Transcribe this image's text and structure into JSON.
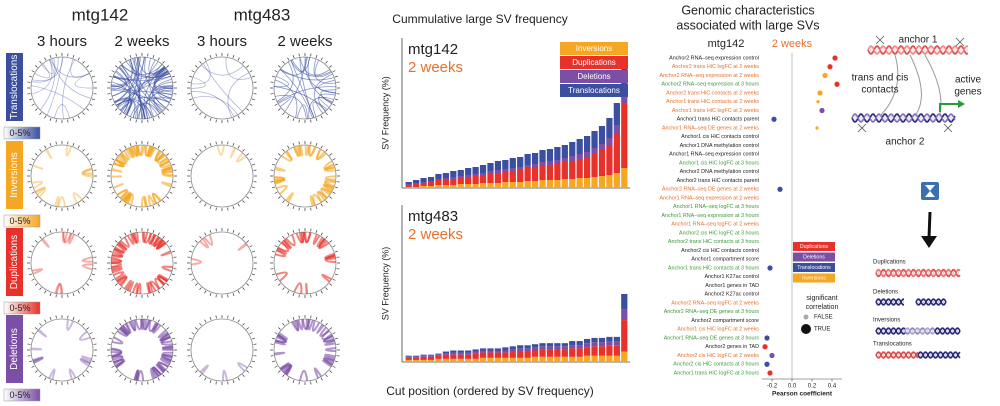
{
  "circos": {
    "samples": [
      "mtg142",
      "mtg483"
    ],
    "times": [
      {
        "label": "3 hours",
        "color": "#3a9a3a"
      },
      {
        "label": "2 weeks",
        "color": "#e8702a"
      },
      {
        "label": "3 hours",
        "color": "#3a9a3a"
      },
      {
        "label": "2 weeks",
        "color": "#e8702a"
      }
    ],
    "rows": [
      {
        "name": "Translocations",
        "color": "#3b4ea0",
        "scale": "0-5%"
      },
      {
        "name": "Inversions",
        "color": "#f5a623",
        "scale": "0-5%"
      },
      {
        "name": "Duplications",
        "color": "#e8312a",
        "scale": "0-5%"
      },
      {
        "name": "Deletions",
        "color": "#7b4fa6",
        "scale": "0-5%"
      }
    ]
  },
  "cumulative": {
    "title": "Cummulative large SV frequency",
    "xlabel": "Cut position (ordered by SV frequency)"
  },
  "chart_data": [
    {
      "type": "bar",
      "stacked": true,
      "sample": "mtg142",
      "time": "2 weeks",
      "time_color": "#e8702a",
      "ylabel": "SV Frequency (%)",
      "ylim": [
        0,
        15
      ],
      "legend": "upper right",
      "series": [
        {
          "name": "Inversions",
          "color": "#f5a623",
          "values": [
            0.1,
            0.1,
            0.2,
            0.2,
            0.3,
            0.3,
            0.3,
            0.4,
            0.4,
            0.4,
            0.5,
            0.5,
            0.5,
            0.6,
            0.6,
            0.6,
            0.7,
            0.7,
            0.8,
            0.8,
            0.8,
            0.9,
            0.9,
            1.0,
            1.0,
            1.1,
            1.2,
            1.3,
            1.5,
            2.0
          ]
        },
        {
          "name": "Duplications",
          "color": "#e8312a",
          "values": [
            0.2,
            0.3,
            0.3,
            0.4,
            0.5,
            0.5,
            0.6,
            0.6,
            0.7,
            0.8,
            0.8,
            0.9,
            1.0,
            1.0,
            1.1,
            1.2,
            1.3,
            1.3,
            1.4,
            1.5,
            1.6,
            1.7,
            1.8,
            1.9,
            2.1,
            2.3,
            2.6,
            3.0,
            4.0,
            6.5
          ]
        },
        {
          "name": "Deletions",
          "color": "#7b4fa6",
          "values": [
            0.1,
            0.1,
            0.1,
            0.1,
            0.1,
            0.2,
            0.2,
            0.2,
            0.2,
            0.2,
            0.2,
            0.3,
            0.3,
            0.3,
            0.3,
            0.3,
            0.3,
            0.4,
            0.4,
            0.4,
            0.4,
            0.4,
            0.5,
            0.5,
            0.5,
            0.6,
            0.6,
            0.7,
            0.8,
            1.5
          ]
        },
        {
          "name": "Translocations",
          "color": "#3b4ea0",
          "values": [
            0.2,
            0.3,
            0.4,
            0.4,
            0.5,
            0.5,
            0.6,
            0.6,
            0.7,
            0.7,
            0.8,
            0.8,
            0.9,
            0.9,
            1.0,
            1.0,
            1.1,
            1.1,
            1.2,
            1.2,
            1.3,
            1.3,
            1.4,
            1.5,
            1.6,
            1.7,
            1.8,
            2.0,
            2.2,
            3.0
          ]
        }
      ]
    },
    {
      "type": "bar",
      "stacked": true,
      "sample": "mtg483",
      "time": "2 weeks",
      "time_color": "#e8702a",
      "ylabel": "SV Frequency (%)",
      "ylim": [
        0,
        15
      ],
      "series": [
        {
          "color": "#f5a623",
          "values": [
            0.2,
            0.2,
            0.2,
            0.2,
            0.3,
            0.3,
            0.3,
            0.3,
            0.3,
            0.3,
            0.4,
            0.4,
            0.4,
            0.4,
            0.4,
            0.4,
            0.4,
            0.5,
            0.5,
            0.5,
            0.5,
            0.5,
            0.5,
            0.5,
            0.6,
            0.6,
            0.6,
            0.6,
            0.6,
            1.0
          ]
        },
        {
          "color": "#e8312a",
          "values": [
            0.2,
            0.2,
            0.3,
            0.3,
            0.3,
            0.4,
            0.4,
            0.4,
            0.4,
            0.5,
            0.5,
            0.5,
            0.5,
            0.5,
            0.6,
            0.6,
            0.6,
            0.6,
            0.7,
            0.7,
            0.7,
            0.7,
            0.8,
            0.8,
            0.8,
            0.9,
            0.9,
            1.0,
            1.0,
            3.0
          ]
        },
        {
          "color": "#7b4fa6",
          "values": [
            0.1,
            0.1,
            0.1,
            0.1,
            0.1,
            0.1,
            0.2,
            0.2,
            0.2,
            0.2,
            0.2,
            0.2,
            0.2,
            0.2,
            0.2,
            0.3,
            0.3,
            0.3,
            0.3,
            0.3,
            0.3,
            0.3,
            0.3,
            0.3,
            0.4,
            0.4,
            0.4,
            0.4,
            0.4,
            1.0
          ]
        },
        {
          "color": "#3b4ea0",
          "values": [
            0.1,
            0.1,
            0.1,
            0.1,
            0.1,
            0.2,
            0.2,
            0.2,
            0.2,
            0.2,
            0.2,
            0.2,
            0.2,
            0.3,
            0.3,
            0.3,
            0.3,
            0.3,
            0.3,
            0.3,
            0.3,
            0.3,
            0.4,
            0.4,
            0.4,
            0.4,
            0.4,
            0.4,
            0.4,
            1.5
          ]
        }
      ]
    },
    {
      "type": "dot",
      "title": [
        "Genomic characteristics",
        "associated with large SVs"
      ],
      "sample": "mtg142",
      "time": "2 weeks",
      "time_color": "#e8702a",
      "xlabel": "Pearson coefficient",
      "xlim": [
        -0.3,
        0.5
      ],
      "xticks": [
        -0.2,
        {
          "value": 0,
          "label": "0.0"
        },
        0.2,
        0.4
      ],
      "legend": [
        {
          "name": "Duplications",
          "color": "#e8312a"
        },
        {
          "name": "Deletions",
          "color": "#7b4fa6"
        },
        {
          "name": "Translocations",
          "color": "#3b4ea0"
        },
        {
          "name": "Inversions",
          "color": "#f5a623"
        }
      ],
      "significance": {
        "title": [
          "significant",
          "correlation"
        ],
        "levels": [
          "FALSE",
          "TRUE"
        ]
      },
      "rows": [
        {
          "label": "Anchor2 RNA–seq expression control",
          "color": "#222222",
          "value": 0.43,
          "sv": "Duplications",
          "significant": true
        },
        {
          "label": "Anchor2 trans HiC logFC at 2 weeks",
          "color": "#e8702a",
          "value": 0.38,
          "sv": "Duplications",
          "significant": true
        },
        {
          "label": "Anchor2 RNA–seq expression at 2 weeks",
          "color": "#e8702a",
          "value": 0.33,
          "sv": "Inversions",
          "significant": true
        },
        {
          "label": "Anchor2 RNA–seq expression at 3 hours",
          "color": "#3a9a3a",
          "value": 0.45,
          "sv": "Duplications",
          "significant": true
        },
        {
          "label": "Anchor2 trans HiC contacts at 2 weeks",
          "color": "#e8702a",
          "value": 0.28,
          "sv": "Inversions",
          "significant": true
        },
        {
          "label": "Anchor1 trans HiC contacts at 2 weeks",
          "color": "#e8702a",
          "value": 0.26,
          "sv": "Inversions",
          "significant": false
        },
        {
          "label": "Anchor1 trans HiC logFC at 2 weeks",
          "color": "#e8702a",
          "value": 0.3,
          "sv": "Deletions",
          "significant": true
        },
        {
          "label": "Anchor1 trans HiC contacts parent",
          "color": "#222222",
          "value": -0.18,
          "sv": "Translocations",
          "significant": true
        },
        {
          "label": "Anchor1 RNA–seq DE genes at 2 weeks",
          "color": "#e8702a",
          "value": 0.25,
          "sv": "Inversions",
          "significant": false
        },
        {
          "label": "Anchor1 cis HiC contacts control",
          "color": "#222222",
          "value": null,
          "sv": null,
          "significant": false
        },
        {
          "label": "Anchor1 DNA methylation control",
          "color": "#222222",
          "value": null,
          "sv": null,
          "significant": false
        },
        {
          "label": "Anchor1 RNA–seq expression control",
          "color": "#222222",
          "value": null,
          "sv": null,
          "significant": false
        },
        {
          "label": "Anchor1 cis HiC logFC at 3 hours",
          "color": "#3a9a3a",
          "value": null,
          "sv": null,
          "significant": false
        },
        {
          "label": "Anchor2 DNA methylation control",
          "color": "#222222",
          "value": null,
          "sv": null,
          "significant": false
        },
        {
          "label": "Anchor2 trans HiC contacts parent",
          "color": "#222222",
          "value": null,
          "sv": null,
          "significant": false
        },
        {
          "label": "Anchor2 RNA–seq DE genes at 2 weeks",
          "color": "#e8702a",
          "value": -0.12,
          "sv": "Translocations",
          "significant": true
        },
        {
          "label": "Anchor1 RNA–seq expression at 2 weeks",
          "color": "#e8702a",
          "value": null,
          "sv": null,
          "significant": false
        },
        {
          "label": "Anchor1 RNA–seq logFC at 3 hours",
          "color": "#3a9a3a",
          "value": null,
          "sv": null,
          "significant": false
        },
        {
          "label": "Anchor1 RNA–seq expression at 3 hours",
          "color": "#3a9a3a",
          "value": null,
          "sv": null,
          "significant": false
        },
        {
          "label": "Anchor1 RNA–seq logFC at 2 weeks",
          "color": "#e8702a",
          "value": null,
          "sv": null,
          "significant": false
        },
        {
          "label": "Anchor2 cis HiC logFC at 3 hours",
          "color": "#3a9a3a",
          "value": null,
          "sv": null,
          "significant": false
        },
        {
          "label": "Anchor2 trans HiC contacts at 3 hours",
          "color": "#3a9a3a",
          "value": null,
          "sv": null,
          "significant": false
        },
        {
          "label": "Anchor2 cis HiC contacts control",
          "color": "#222222",
          "value": null,
          "sv": null,
          "significant": false
        },
        {
          "label": "Anchor1 compartment score",
          "color": "#222222",
          "value": null,
          "sv": null,
          "significant": false
        },
        {
          "label": "Anchor1 trans HiC contacts at 3 hours",
          "color": "#3a9a3a",
          "value": -0.22,
          "sv": "Translocations",
          "significant": true
        },
        {
          "label": "Anchor1 K27ac control",
          "color": "#222222",
          "value": null,
          "sv": null,
          "significant": false
        },
        {
          "label": "Anchor1 genes in TAD",
          "color": "#222222",
          "value": null,
          "sv": null,
          "significant": false
        },
        {
          "label": "Anchor2 K27ac control",
          "color": "#222222",
          "value": null,
          "sv": null,
          "significant": false
        },
        {
          "label": "Anchor2 RNA–seq logFC at 2 weeks",
          "color": "#e8702a",
          "value": null,
          "sv": null,
          "significant": false
        },
        {
          "label": "Anchor2 RNA–seq DE genes at 3 hours",
          "color": "#3a9a3a",
          "value": null,
          "sv": null,
          "significant": false
        },
        {
          "label": "Anchor2 compartment score",
          "color": "#222222",
          "value": null,
          "sv": null,
          "significant": false
        },
        {
          "label": "Anchor1 cis HiC logFC at 2 weeks",
          "color": "#e8702a",
          "value": null,
          "sv": null,
          "significant": false
        },
        {
          "label": "Anchor1 RNA–seq DE genes at 3 hours",
          "color": "#3a9a3a",
          "value": -0.25,
          "sv": "Translocations",
          "significant": true
        },
        {
          "label": "Anchor2 genes in TAD",
          "color": "#222222",
          "value": -0.27,
          "sv": "Duplications",
          "significant": true
        },
        {
          "label": "Anchor2 cis HiC logFC at 2 weeks",
          "color": "#e8702a",
          "value": -0.2,
          "sv": "Deletions",
          "significant": true
        },
        {
          "label": "Anchor2 cis HiC contacts at 3 hours",
          "color": "#3a9a3a",
          "value": -0.25,
          "sv": "Translocations",
          "significant": true
        },
        {
          "label": "Anchor1 trans HiC logFC at 3 hours",
          "color": "#3a9a3a",
          "value": -0.22,
          "sv": "Duplications",
          "significant": true
        }
      ]
    }
  ],
  "schematic": {
    "anchor1": "anchor 1",
    "anchor2": "anchor 2",
    "contacts": [
      "trans and cis",
      "contacts"
    ],
    "genes": [
      "active",
      "genes"
    ],
    "types": [
      "Duplications",
      "Deletions",
      "Inversions",
      "Translocations"
    ]
  }
}
